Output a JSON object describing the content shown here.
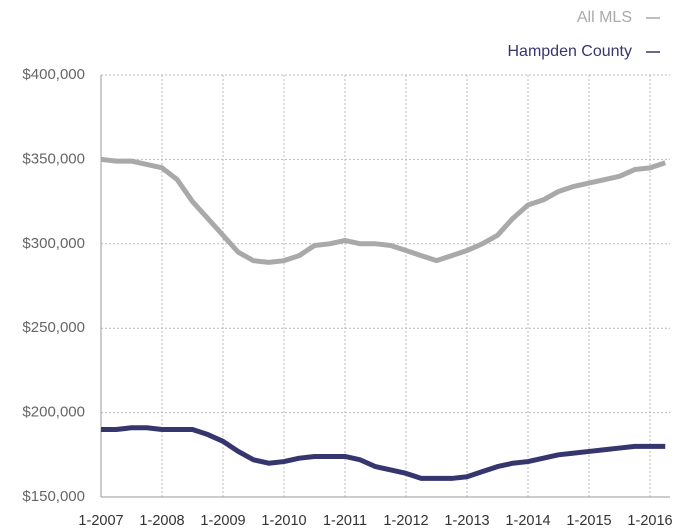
{
  "chart_data": {
    "type": "line",
    "categories": [
      "1-2007",
      null,
      null,
      null,
      "1-2008",
      null,
      null,
      null,
      "1-2009",
      null,
      null,
      null,
      "1-2010",
      null,
      null,
      null,
      "1-2011",
      null,
      null,
      null,
      "1-2012",
      null,
      null,
      null,
      "1-2013",
      null,
      null,
      null,
      "1-2014",
      null,
      null,
      null,
      "1-2015",
      null,
      null,
      null,
      "1-2016",
      null
    ],
    "series": [
      {
        "name": "All MLS",
        "color": "#a9a9a9",
        "values": [
          350000,
          349000,
          349000,
          347000,
          345000,
          338000,
          325000,
          315000,
          305000,
          295000,
          290000,
          289000,
          290000,
          293000,
          299000,
          300000,
          302000,
          300000,
          300000,
          299000,
          296000,
          293000,
          290000,
          293000,
          296000,
          300000,
          305000,
          315000,
          323000,
          326000,
          331000,
          334000,
          336000,
          338000,
          340000,
          344000,
          345000,
          348000
        ]
      },
      {
        "name": "Hampden County",
        "color": "#36366f",
        "values": [
          190000,
          190000,
          191000,
          191000,
          190000,
          190000,
          190000,
          187000,
          183000,
          177000,
          172000,
          170000,
          171000,
          173000,
          174000,
          174000,
          174000,
          172000,
          168000,
          166000,
          164000,
          161000,
          161000,
          161000,
          162000,
          165000,
          168000,
          170000,
          171000,
          173000,
          175000,
          176000,
          177000,
          178000,
          179000,
          180000,
          180000,
          180000
        ]
      }
    ],
    "ylim": [
      150000,
      400000
    ],
    "yticks": [
      {
        "value": 150000,
        "label": "$150,000"
      },
      {
        "value": 200000,
        "label": "$200,000"
      },
      {
        "value": 250000,
        "label": "$250,000"
      },
      {
        "value": 300000,
        "label": "$300,000"
      },
      {
        "value": 350000,
        "label": "$350,000"
      },
      {
        "value": 400000,
        "label": "$400,000"
      }
    ],
    "grid": true,
    "legend": "top-right"
  }
}
